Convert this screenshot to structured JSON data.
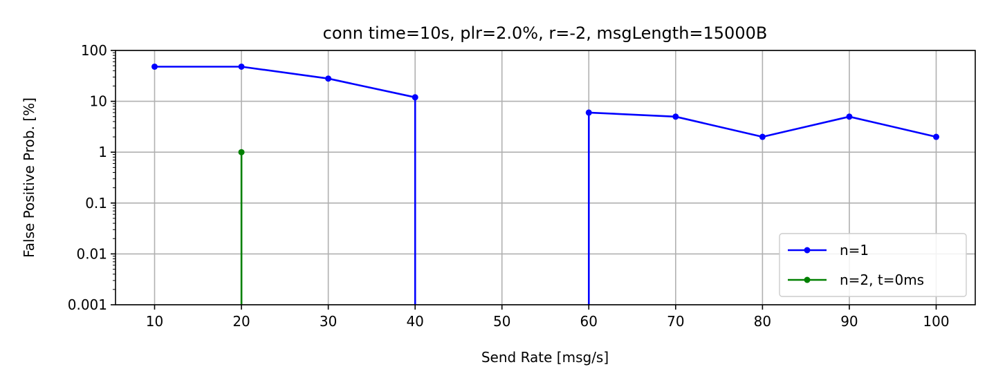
{
  "chart_data": {
    "type": "line",
    "title": "conn time=10s, plr=2.0%, r=-2, msgLength=15000B",
    "xlabel": "Send Rate [msg/s]",
    "ylabel": "False Positive Prob. [%]",
    "yscale": "log",
    "xlim": [
      5.5,
      104.5
    ],
    "ylim": [
      0.001,
      100
    ],
    "xticks": [
      10,
      20,
      30,
      40,
      50,
      60,
      70,
      80,
      90,
      100
    ],
    "xtick_labels": [
      "10",
      "20",
      "30",
      "40",
      "50",
      "60",
      "70",
      "80",
      "90",
      "100"
    ],
    "yticks": [
      0.001,
      0.01,
      0.1,
      1,
      10,
      100
    ],
    "ytick_labels": [
      "0.001",
      "0.01",
      "0.1",
      "1",
      "10",
      "100"
    ],
    "grid": true,
    "legend_position": "lower-right",
    "series": [
      {
        "name": "n=1",
        "color": "#0000ff",
        "x": [
          10,
          20,
          30,
          40,
          50,
          60,
          70,
          80,
          90,
          100
        ],
        "y": [
          48,
          48,
          28,
          12,
          0,
          6,
          5,
          2,
          5,
          2
        ]
      },
      {
        "name": "n=2, t=0ms",
        "color": "#008000",
        "x": [
          10,
          20,
          30,
          40,
          50,
          60,
          70,
          80,
          90,
          100
        ],
        "y": [
          0,
          1,
          0,
          0,
          0,
          0,
          0,
          0,
          0,
          0
        ]
      }
    ]
  }
}
